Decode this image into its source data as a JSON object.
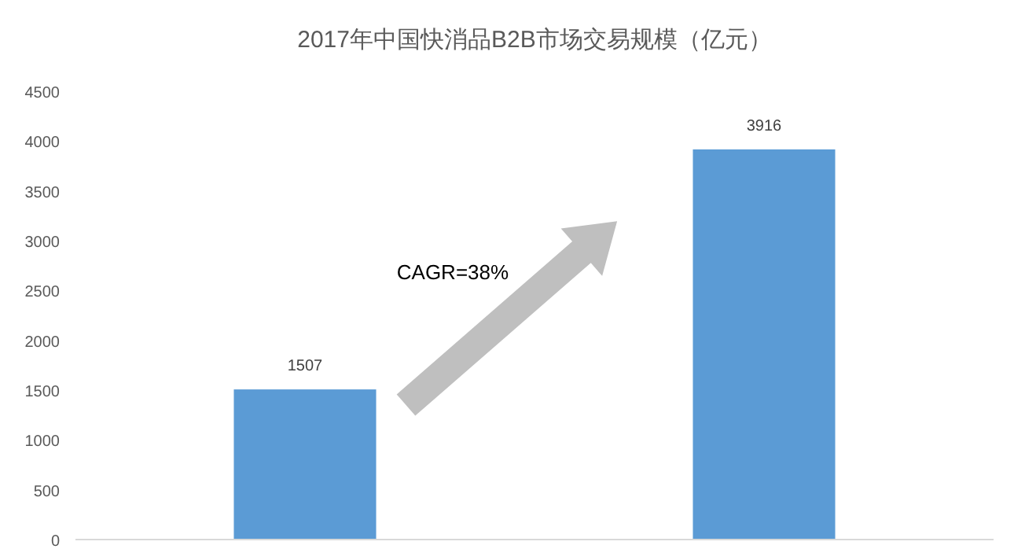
{
  "chart_data": {
    "type": "bar",
    "title": "2017年中国快消品B2B市场交易规模（亿元）",
    "categories": [
      null,
      null
    ],
    "values": [
      1507,
      3916
    ],
    "color": "#5b9bd5",
    "ylim": [
      0,
      4500
    ],
    "yticks": [
      0,
      500,
      1000,
      1500,
      2000,
      2500,
      3000,
      3500,
      4000,
      4500
    ],
    "data_labels": true,
    "grid": false,
    "annotations": [
      "CAGR=38%"
    ]
  }
}
